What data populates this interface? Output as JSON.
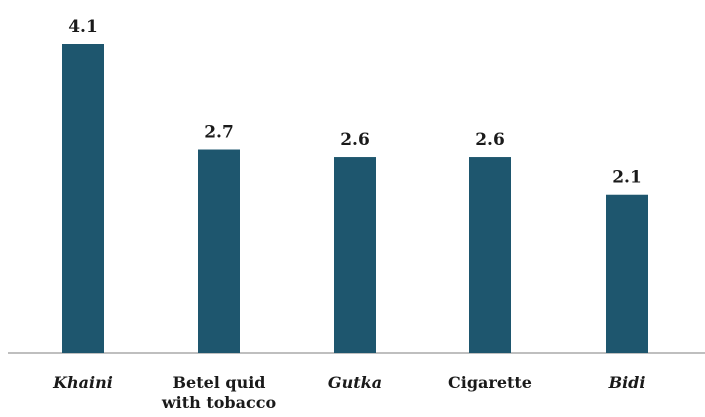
{
  "chart_data": {
    "type": "bar",
    "categories": [
      {
        "label": "Khaini",
        "italic": true
      },
      {
        "label": "Betel quid with tobacco",
        "italic": false
      },
      {
        "label": "Gutka",
        "italic": true
      },
      {
        "label": "Cigarette",
        "italic": false
      },
      {
        "label": "Bidi",
        "italic": true
      }
    ],
    "values": [
      4.1,
      2.7,
      2.6,
      2.6,
      2.1
    ],
    "value_labels": [
      "4.1",
      "2.7",
      "2.6",
      "2.6",
      "2.1"
    ],
    "ylim": [
      0,
      4.1
    ],
    "grid": false,
    "legend": "none",
    "colors": {
      "bar": "#1e566e",
      "axis": "#bfbfbf",
      "text": "#1a1a1a"
    }
  }
}
